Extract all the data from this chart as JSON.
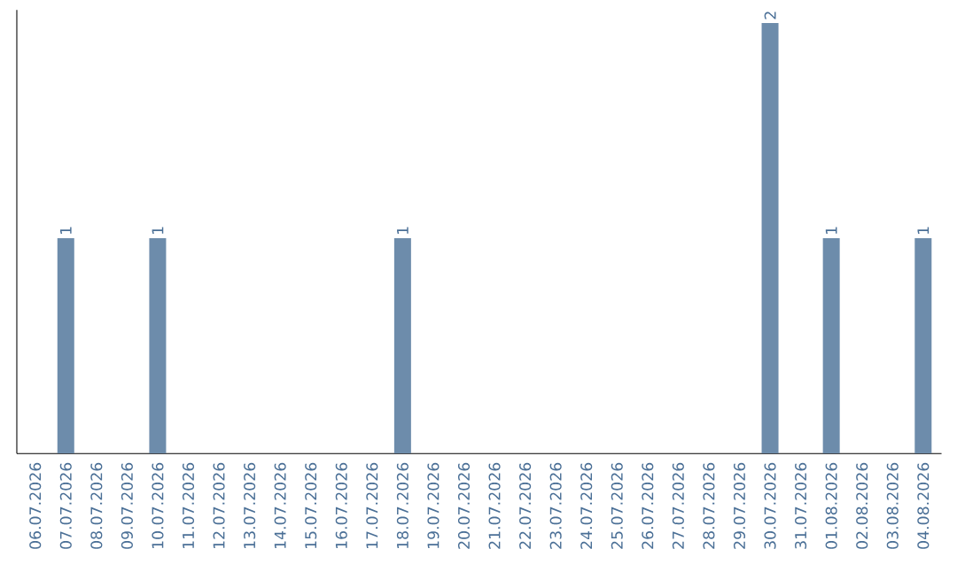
{
  "chart_data": {
    "type": "bar",
    "categories": [
      "06.07.2026",
      "07.07.2026",
      "08.07.2026",
      "09.07.2026",
      "10.07.2026",
      "11.07.2026",
      "12.07.2026",
      "13.07.2026",
      "14.07.2026",
      "15.07.2026",
      "16.07.2026",
      "17.07.2026",
      "18.07.2026",
      "19.07.2026",
      "20.07.2026",
      "21.07.2026",
      "22.07.2026",
      "23.07.2026",
      "24.07.2026",
      "25.07.2026",
      "26.07.2026",
      "27.07.2026",
      "28.07.2026",
      "29.07.2026",
      "30.07.2026",
      "31.07.2026",
      "01.08.2026",
      "02.08.2026",
      "03.08.2026",
      "04.08.2026"
    ],
    "values": [
      0,
      1,
      0,
      0,
      1,
      0,
      0,
      0,
      0,
      0,
      0,
      0,
      1,
      0,
      0,
      0,
      0,
      0,
      0,
      0,
      0,
      0,
      0,
      0,
      2,
      0,
      1,
      0,
      0,
      1
    ],
    "value_labels": [
      null,
      "1",
      null,
      null,
      "1",
      null,
      null,
      null,
      null,
      null,
      null,
      null,
      "1",
      null,
      null,
      null,
      null,
      null,
      null,
      null,
      null,
      null,
      null,
      null,
      "2",
      null,
      "1",
      null,
      null,
      "1"
    ],
    "color": "#6d8cab",
    "grid": false,
    "tick_labels": "x"
  }
}
